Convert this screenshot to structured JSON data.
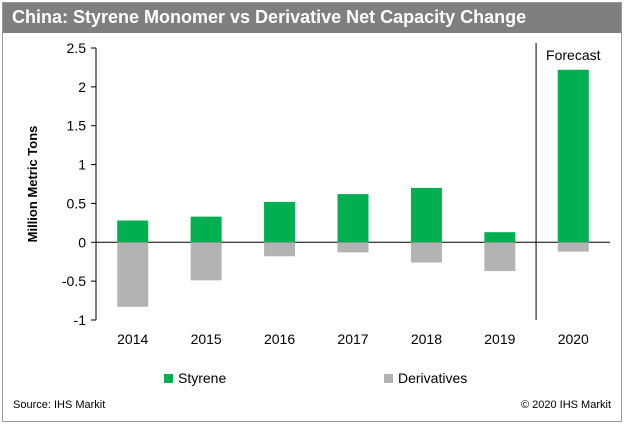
{
  "header": {
    "title": "China: Styrene Monomer vs Derivative Net Capacity Change"
  },
  "footer": {
    "source": "Source: IHS Markit",
    "copyright": "© 2020 IHS Markit"
  },
  "chart_data": {
    "type": "bar",
    "stacked": true,
    "categories": [
      "2014",
      "2015",
      "2016",
      "2017",
      "2018",
      "2019",
      "2020"
    ],
    "series": [
      {
        "name": "Styrene",
        "color": "#00b050",
        "values": [
          0.28,
          0.33,
          0.52,
          0.62,
          0.7,
          0.13,
          2.22
        ]
      },
      {
        "name": "Derivatives",
        "color": "#b3b3b3",
        "values": [
          -0.83,
          -0.49,
          -0.18,
          -0.13,
          -0.26,
          -0.37,
          -0.12
        ]
      }
    ],
    "ylabel": "Million Metric Tons",
    "xlabel": "",
    "ylim": [
      -1,
      2.5
    ],
    "yticks": [
      "-1",
      "-0.5",
      "0",
      "0.5",
      "1",
      "1.5",
      "2",
      "2.5"
    ],
    "grid": false,
    "legend": "bottom",
    "annotation": "Forecast"
  }
}
